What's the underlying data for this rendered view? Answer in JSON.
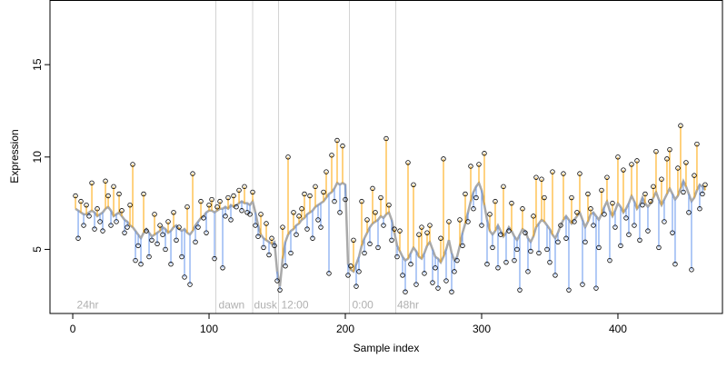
{
  "chart_data": {
    "type": "scatter",
    "x_label": "Sample index",
    "y_label": "Expression",
    "xlim": [
      -16.7,
      476.7
    ],
    "ylim": [
      1.53,
      18.5
    ],
    "xticks": [
      0,
      100,
      200,
      300,
      400
    ],
    "yticks": [
      5,
      10,
      15
    ],
    "vlines": [
      105,
      132,
      151,
      203,
      237
    ],
    "annotations": [
      {
        "x": 3,
        "y": 2,
        "label": "24hr"
      },
      {
        "x": 107,
        "y": 2,
        "label": "dawn"
      },
      {
        "x": 133,
        "y": 2,
        "label": "dusk"
      },
      {
        "x": 153,
        "y": 2,
        "label": "12:00"
      },
      {
        "x": 205,
        "y": 2,
        "label": "0:00"
      },
      {
        "x": 238,
        "y": 2,
        "label": "48hr"
      }
    ],
    "colors": {
      "above": "#ffa500",
      "below": "#6495ed",
      "fit": "#a9a9a9",
      "vline": "#d3d3d3"
    },
    "x": [
      2,
      4,
      6,
      8,
      10,
      12,
      14,
      16,
      18,
      20,
      22,
      24,
      26,
      28,
      30,
      32,
      34,
      36,
      38,
      40,
      42,
      44,
      46,
      48,
      50,
      52,
      54,
      56,
      58,
      60,
      62,
      64,
      66,
      68,
      70,
      72,
      74,
      76,
      78,
      80,
      82,
      84,
      86,
      88,
      90,
      92,
      94,
      96,
      98,
      100,
      102,
      104,
      106,
      108,
      110,
      112,
      114,
      116,
      118,
      120,
      122,
      124,
      126,
      128,
      130,
      132,
      134,
      136,
      138,
      140,
      142,
      144,
      146,
      148,
      150,
      152,
      154,
      156,
      158,
      160,
      162,
      164,
      166,
      168,
      170,
      172,
      174,
      176,
      178,
      180,
      182,
      184,
      186,
      188,
      190,
      192,
      194,
      196,
      198,
      200,
      202,
      204,
      206,
      208,
      210,
      212,
      214,
      216,
      218,
      220,
      222,
      224,
      226,
      228,
      230,
      232,
      234,
      236,
      238,
      240,
      242,
      244,
      246,
      248,
      250,
      252,
      254,
      256,
      258,
      260,
      262,
      264,
      266,
      268,
      270,
      272,
      274,
      276,
      278,
      280,
      282,
      284,
      286,
      288,
      290,
      292,
      294,
      296,
      298,
      300,
      302,
      304,
      306,
      308,
      310,
      312,
      314,
      316,
      318,
      320,
      322,
      324,
      326,
      328,
      330,
      332,
      334,
      336,
      338,
      340,
      342,
      344,
      346,
      348,
      350,
      352,
      354,
      356,
      358,
      360,
      362,
      364,
      366,
      368,
      370,
      372,
      374,
      376,
      378,
      380,
      382,
      384,
      386,
      388,
      390,
      392,
      394,
      396,
      398,
      400,
      402,
      404,
      406,
      408,
      410,
      412,
      414,
      416,
      418,
      420,
      422,
      424,
      426,
      428,
      430,
      432,
      434,
      436,
      438,
      440,
      442,
      444,
      446,
      448,
      450,
      452,
      454,
      456,
      458,
      460,
      462,
      464
    ],
    "values": [
      7.9,
      5.6,
      7.6,
      6.3,
      7.4,
      6.8,
      8.6,
      6.1,
      7.2,
      6.5,
      6.0,
      8.7,
      7.9,
      6.3,
      8.4,
      6.5,
      8.0,
      7.1,
      5.9,
      6.2,
      7.4,
      9.6,
      4.4,
      5.2,
      4.2,
      8.0,
      6.0,
      4.6,
      5.5,
      6.9,
      5.3,
      6.3,
      5.8,
      5.0,
      6.5,
      4.2,
      7.0,
      5.5,
      6.2,
      4.6,
      3.5,
      7.3,
      3.1,
      9.1,
      5.4,
      6.2,
      7.6,
      6.7,
      5.9,
      7.4,
      7.7,
      4.5,
      7.3,
      7.6,
      4.0,
      6.8,
      7.8,
      6.6,
      7.9,
      7.3,
      8.2,
      7.1,
      8.4,
      7.0,
      6.9,
      8.1,
      6.3,
      5.7,
      6.9,
      5.1,
      6.4,
      4.7,
      5.6,
      5.2,
      3.3,
      2.8,
      6.2,
      4.1,
      10.0,
      4.8,
      7.0,
      5.8,
      6.8,
      7.2,
      8.0,
      6.1,
      7.9,
      5.6,
      8.4,
      6.6,
      6.2,
      8.1,
      9.2,
      3.7,
      10.1,
      7.6,
      10.9,
      7.0,
      10.6,
      7.7,
      3.6,
      4.1,
      5.5,
      3.0,
      3.8,
      7.6,
      4.8,
      6.6,
      5.3,
      8.3,
      7.0,
      5.1,
      7.8,
      6.3,
      11.0,
      7.4,
      5.5,
      6.1,
      4.6,
      6.0,
      3.6,
      2.7,
      9.7,
      4.2,
      8.5,
      3.1,
      5.8,
      6.2,
      3.7,
      5.9,
      6.3,
      3.2,
      4.0,
      2.9,
      5.6,
      9.9,
      3.3,
      6.5,
      2.7,
      3.8,
      4.4,
      6.6,
      5.2,
      8.0,
      6.5,
      9.5,
      7.2,
      7.8,
      9.6,
      6.3,
      10.2,
      4.2,
      6.9,
      5.1,
      7.6,
      4.0,
      5.8,
      8.4,
      4.3,
      6.0,
      7.5,
      4.4,
      5.0,
      2.8,
      7.2,
      5.9,
      3.8,
      4.9,
      6.8,
      8.9,
      4.8,
      8.8,
      7.8,
      5.0,
      4.3,
      9.2,
      3.6,
      5.4,
      6.3,
      9.1,
      5.6,
      2.8,
      7.8,
      6.5,
      7.0,
      9.1,
      3.1,
      5.4,
      8.0,
      7.2,
      6.3,
      2.9,
      5.1,
      8.2,
      6.9,
      8.9,
      4.4,
      7.5,
      6.2,
      10.0,
      5.2,
      9.3,
      6.7,
      5.8,
      9.6,
      6.3,
      9.8,
      5.5,
      7.4,
      8.0,
      6.0,
      7.6,
      8.4,
      10.3,
      5.1,
      8.8,
      6.5,
      9.9,
      10.4,
      5.9,
      4.2,
      9.4,
      11.7,
      8.1,
      9.7,
      7.0,
      3.9,
      9.0,
      10.7,
      7.2,
      8.0,
      8.5
    ],
    "fitted": [
      7.2,
      7.1,
      7.0,
      6.9,
      6.9,
      7.0,
      7.1,
      7.0,
      6.8,
      6.9,
      7.0,
      7.2,
      7.3,
      7.1,
      6.8,
      6.9,
      7.0,
      6.8,
      6.6,
      6.5,
      6.3,
      6.2,
      6.0,
      5.8,
      5.6,
      5.9,
      6.1,
      5.9,
      5.7,
      5.8,
      5.9,
      6.0,
      6.2,
      6.1,
      5.9,
      6.0,
      6.2,
      6.3,
      6.1,
      6.0,
      6.1,
      5.9,
      5.8,
      6.0,
      6.3,
      6.5,
      6.7,
      6.8,
      7.0,
      7.1,
      7.1,
      7.0,
      7.1,
      7.2,
      7.2,
      7.3,
      7.2,
      7.4,
      7.3,
      7.4,
      7.5,
      7.6,
      7.5,
      7.5,
      7.4,
      7.6,
      7.0,
      6.3,
      5.8,
      5.6,
      5.5,
      5.4,
      5.3,
      5.4,
      3.8,
      3.0,
      4.5,
      5.4,
      5.8,
      6.0,
      6.1,
      6.3,
      6.4,
      6.6,
      6.7,
      6.9,
      7.0,
      7.1,
      7.3,
      7.4,
      7.5,
      7.6,
      7.8,
      8.0,
      8.1,
      8.3,
      8.6,
      8.5,
      8.6,
      8.5,
      4.2,
      3.9,
      3.8,
      4.2,
      4.6,
      5.2,
      5.6,
      5.9,
      6.2,
      6.4,
      6.5,
      6.6,
      6.8,
      6.7,
      6.9,
      7.0,
      6.6,
      5.9,
      5.2,
      4.9,
      4.6,
      4.4,
      4.5,
      4.8,
      5.1,
      4.9,
      4.6,
      4.5,
      4.8,
      5.2,
      5.4,
      5.0,
      4.6,
      4.5,
      4.3,
      4.6,
      5.0,
      5.5,
      4.8,
      4.4,
      4.6,
      5.2,
      5.9,
      6.4,
      7.0,
      7.6,
      8.1,
      8.4,
      8.6,
      8.2,
      7.4,
      6.6,
      6.0,
      5.8,
      6.0,
      6.3,
      6.0,
      5.7,
      5.9,
      6.2,
      6.0,
      5.7,
      5.5,
      5.8,
      6.1,
      6.0,
      5.6,
      5.4,
      5.7,
      6.2,
      6.4,
      6.6,
      6.5,
      6.3,
      6.1,
      5.8,
      5.6,
      5.9,
      6.3,
      6.6,
      6.8,
      6.6,
      6.4,
      6.6,
      6.8,
      7.0,
      6.6,
      6.2,
      6.5,
      6.9,
      7.0,
      6.8,
      6.6,
      6.9,
      7.3,
      7.6,
      7.1,
      6.8,
      7.1,
      7.5,
      7.3,
      7.0,
      7.2,
      7.5,
      7.9,
      7.6,
      7.2,
      7.4,
      7.8,
      7.5,
      7.3,
      7.5,
      7.8,
      8.1,
      7.7,
      7.4,
      7.7,
      8.0,
      8.3,
      8.0,
      7.7,
      7.9,
      8.3,
      8.7,
      8.4,
      8.0,
      7.6,
      7.8,
      8.2,
      8.5,
      8.4,
      8.2
    ]
  }
}
